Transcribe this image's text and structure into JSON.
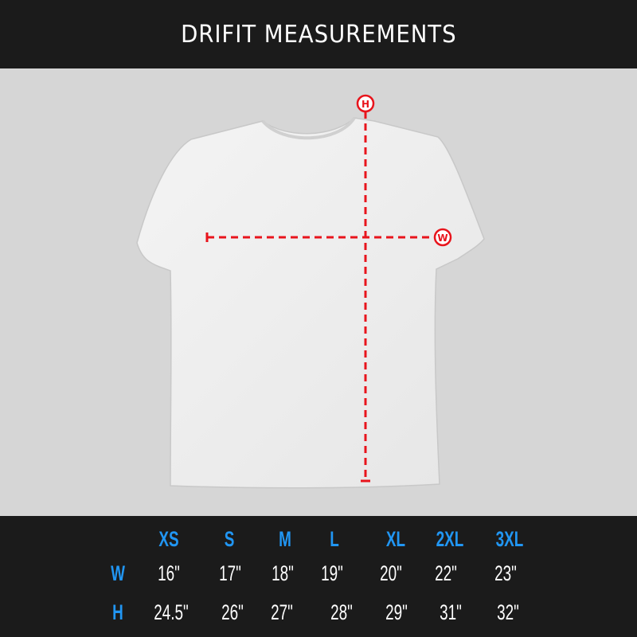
{
  "header": {
    "title": "DRIFIT MEASUREMENTS"
  },
  "diagram": {
    "height_marker": "H",
    "width_marker": "W",
    "marker_color": "#e8141c",
    "background": "#d6d6d6"
  },
  "size_chart": {
    "accent_color": "#2196f3",
    "sizes": [
      "XS",
      "S",
      "M",
      "L",
      "XL",
      "2XL",
      "3XL"
    ],
    "rows": [
      {
        "label": "W",
        "values": [
          "16\"",
          "17\"",
          "18\"",
          "19\"",
          "20\"",
          "22\"",
          "23\""
        ]
      },
      {
        "label": "H",
        "values": [
          "24.5\"",
          "26\"",
          "27\"",
          "28\"",
          "29\"",
          "31\"",
          "32\""
        ]
      }
    ]
  }
}
